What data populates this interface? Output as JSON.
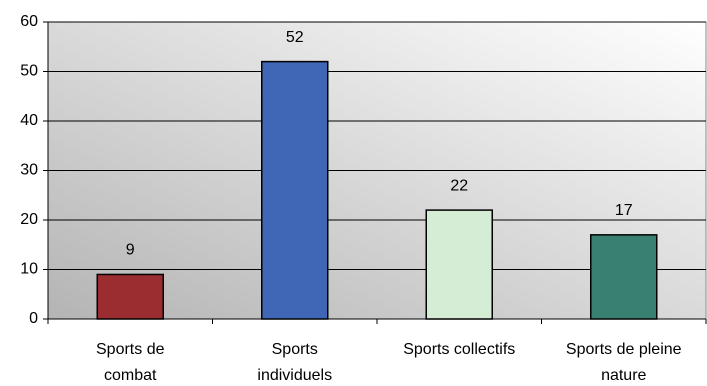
{
  "chart_data": {
    "type": "bar",
    "categories": [
      "Sports de\ncombat",
      "Sports\nindividuels",
      "Sports collectifs",
      "Sports de pleine\nnature"
    ],
    "values": [
      9,
      52,
      22,
      17
    ],
    "colors": [
      "#9b2d30",
      "#3f67b5",
      "#d5ecd5",
      "#3a8070"
    ],
    "ylim": [
      0,
      60
    ],
    "yticks": [
      0,
      10,
      20,
      30,
      40,
      50,
      60
    ],
    "grid": true
  }
}
